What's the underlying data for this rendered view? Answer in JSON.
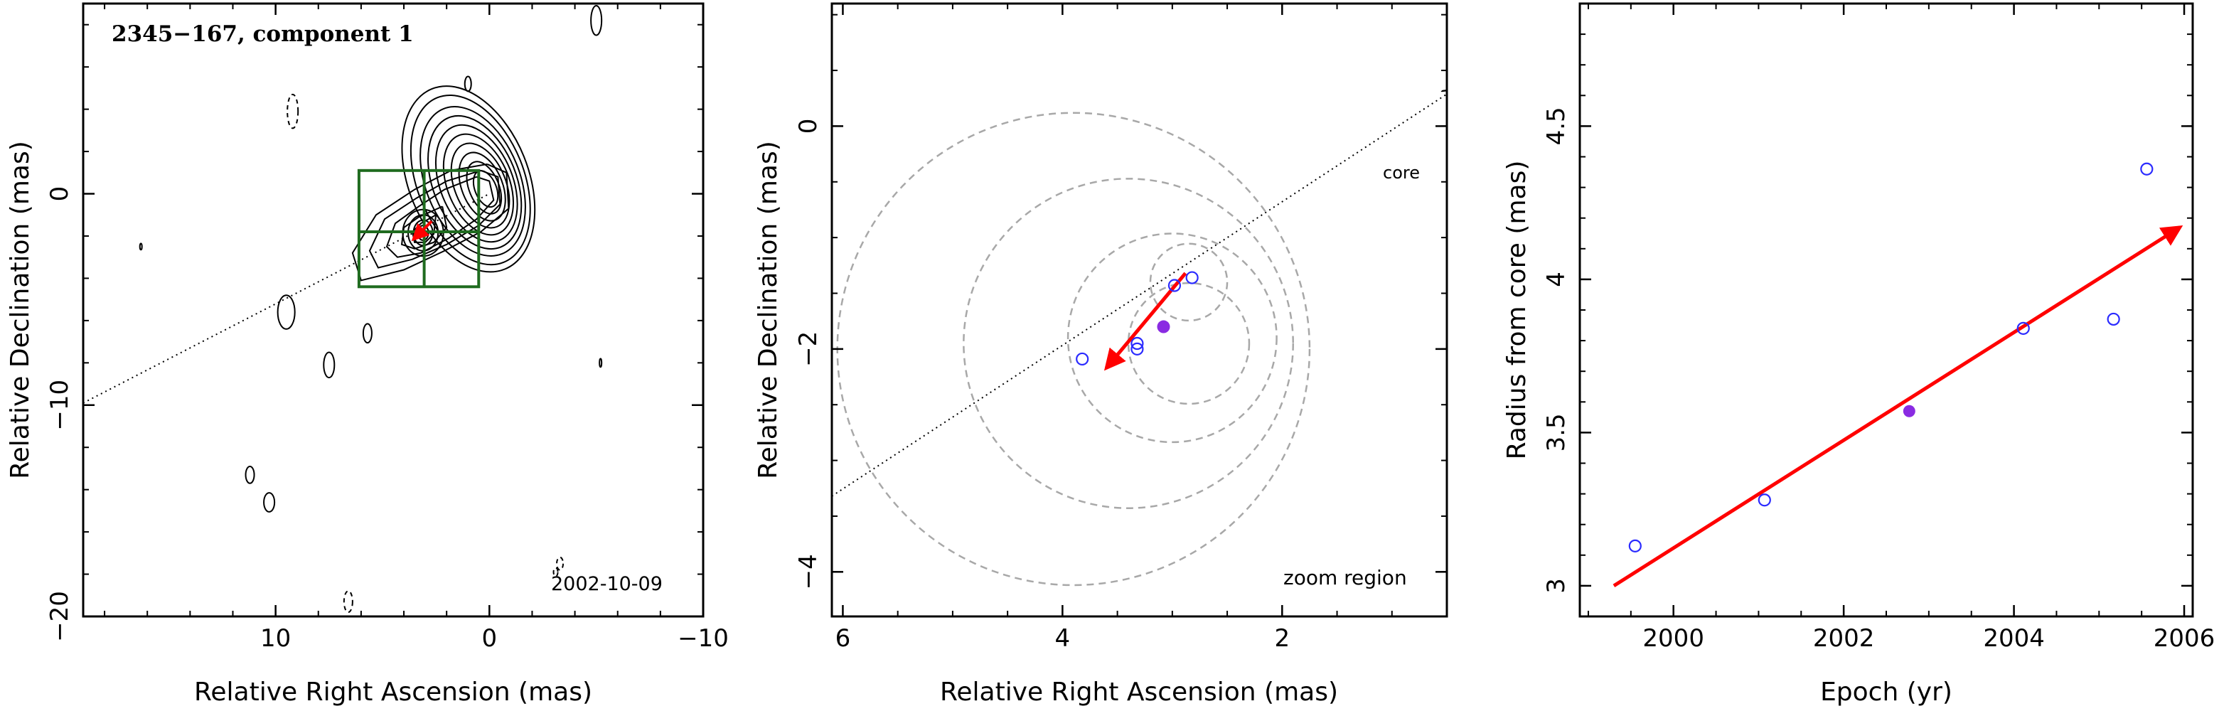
{
  "colors": {
    "vector": "#ff0000",
    "box": "#1f6b1f",
    "open_marker": "#2b2bff",
    "filled_marker": "#8a2be2",
    "circles": "#a8a8a8",
    "contour": "#000000"
  },
  "chart_data": [
    {
      "type": "scatter",
      "panel": "map",
      "title": "2345−167, component 1",
      "epoch_label": "2002-10-09",
      "xlabel": "Relative Right Ascension (mas)",
      "ylabel": "Relative Declination (mas)",
      "xlim": [
        19,
        -10
      ],
      "ylim": [
        -20,
        9
      ],
      "x_reversed": true,
      "xticks": [
        10,
        0,
        -10
      ],
      "xtick_labels": [
        "10",
        "0",
        "−10"
      ],
      "yticks": [
        0,
        -10,
        -20
      ],
      "ytick_labels": [
        "0",
        "−10",
        "−20"
      ],
      "component_position": {
        "x": 3.05,
        "y": -1.8
      },
      "vector": {
        "x": [
          3.55,
          2.7
        ],
        "y": [
          -2.15,
          -1.3
        ]
      },
      "zoom_box": {
        "x": [
          6.1,
          0.5
        ],
        "y": [
          -4.4,
          1.1
        ]
      },
      "core_line": {
        "x": [
          19,
          0
        ],
        "y": [
          -9.9,
          0
        ]
      },
      "contours": "many positive contours centred near the core (0,0) and component; dashed negative contours scattered"
    },
    {
      "type": "scatter",
      "panel": "zoom",
      "xlabel": "Relative Right Ascension (mas)",
      "ylabel": "Relative Declination (mas)",
      "annotation": "zoom region",
      "core_label": "core",
      "xlim": [
        6.1,
        0.5
      ],
      "ylim": [
        -4.4,
        1.1
      ],
      "x_reversed": true,
      "xticks": [
        6,
        4,
        2
      ],
      "xtick_labels": [
        "6",
        "4",
        "2"
      ],
      "yticks": [
        0,
        -2,
        -4
      ],
      "ytick_labels": [
        "0",
        "−2",
        "−4"
      ],
      "points_open": {
        "x": [
          3.82,
          3.32,
          3.32,
          2.98,
          2.82
        ],
        "y": [
          -2.09,
          -1.95,
          -2.0,
          -1.43,
          -1.36
        ]
      },
      "point_filled": {
        "x": 3.08,
        "y": -1.8
      },
      "circles": [
        {
          "cx": 3.9,
          "cy": -2.0,
          "r": 2.15
        },
        {
          "cx": 3.4,
          "cy": -1.95,
          "r": 1.5
        },
        {
          "cx": 3.0,
          "cy": -1.9,
          "r": 0.95
        },
        {
          "cx": 2.85,
          "cy": -1.95,
          "r": 0.55
        },
        {
          "cx": 2.85,
          "cy": -1.4,
          "r": 0.35
        }
      ],
      "vector": {
        "x": [
          2.88,
          3.6
        ],
        "y": [
          -1.32,
          -2.17
        ]
      },
      "core_line": {
        "x": [
          6.1,
          0.45
        ],
        "y": [
          -3.32,
          0.32
        ]
      }
    },
    {
      "type": "scatter",
      "panel": "radius",
      "xlabel": "Epoch (yr)",
      "ylabel": "Radius from core (mas)",
      "xlim": [
        1998.9,
        2006.1
      ],
      "ylim": [
        2.9,
        4.9
      ],
      "xticks": [
        2000,
        2002,
        2004,
        2006
      ],
      "xtick_labels": [
        "2000",
        "2002",
        "2004",
        "2006"
      ],
      "yticks": [
        3,
        3.5,
        4,
        4.5
      ],
      "ytick_labels": [
        "3",
        "3.5",
        "4",
        "4.5"
      ],
      "points_open": {
        "x": [
          1999.55,
          2001.07,
          2004.11,
          2005.17,
          2005.56
        ],
        "y": [
          3.13,
          3.28,
          3.84,
          3.87,
          4.36
        ]
      },
      "point_filled": {
        "x": 2002.77,
        "y": 3.57
      },
      "fit_vector": {
        "x": [
          1999.3,
          2005.95
        ],
        "y": [
          3.0,
          4.17
        ]
      }
    }
  ]
}
